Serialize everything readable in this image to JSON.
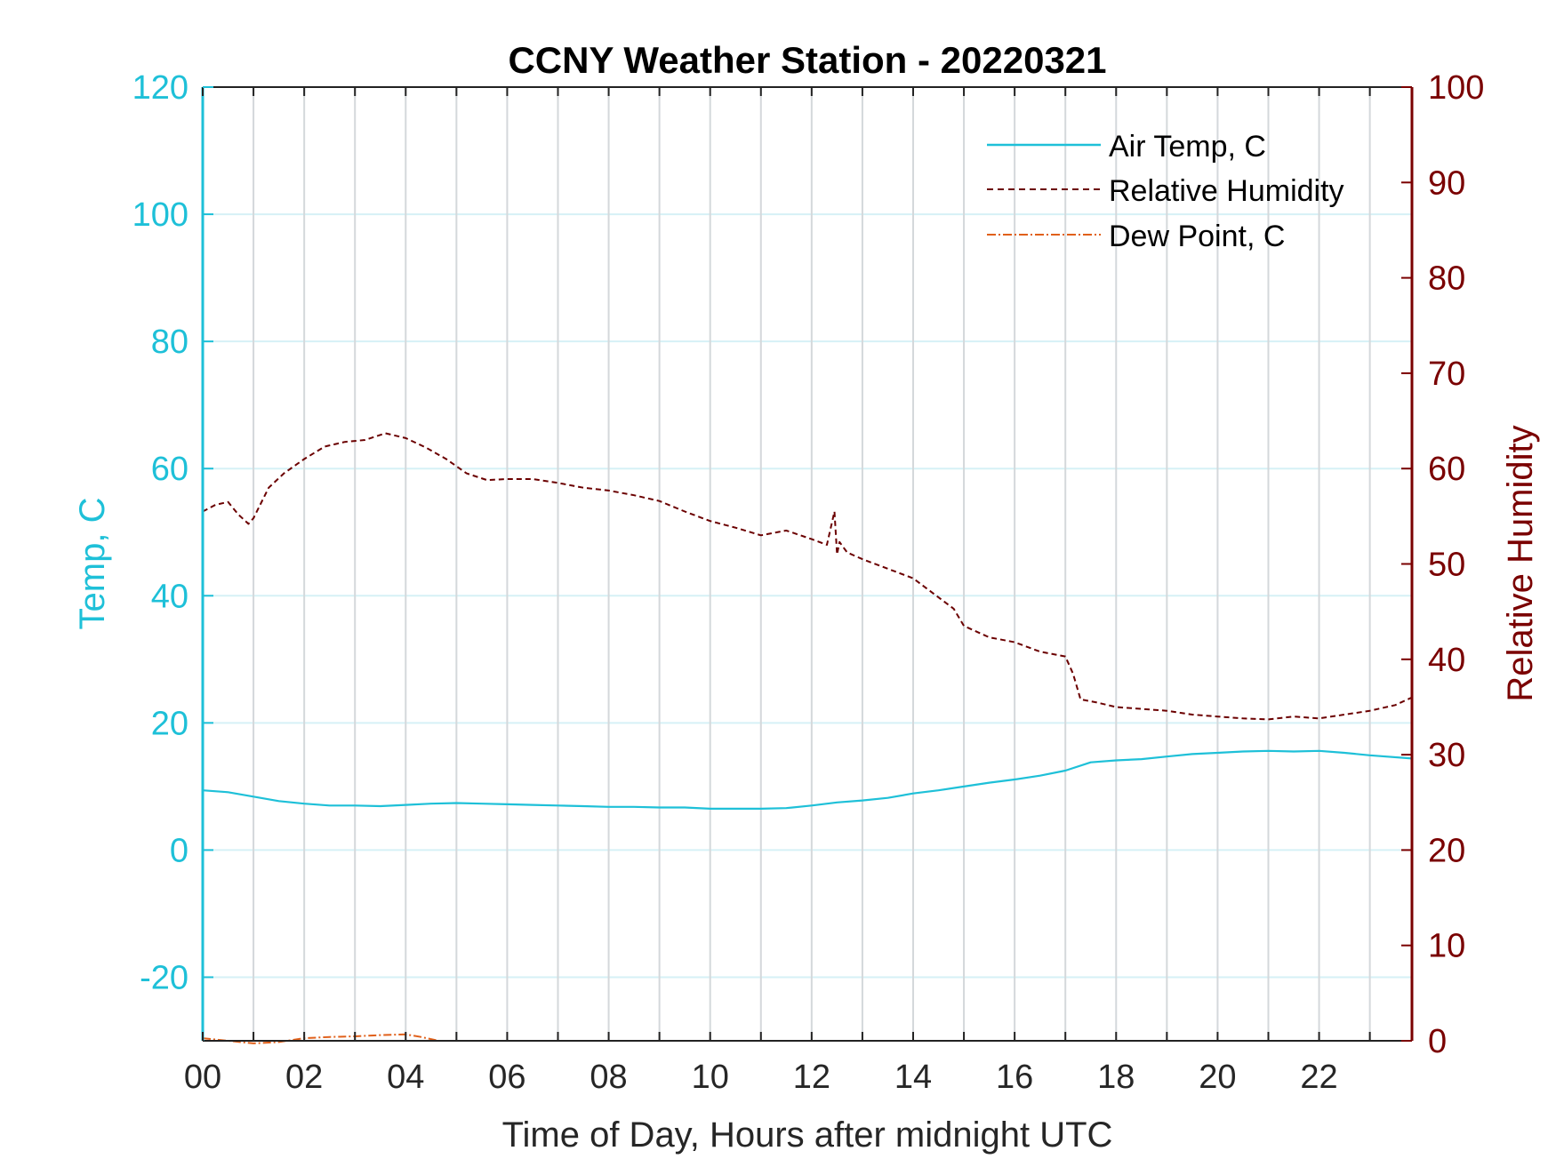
{
  "chart_data": {
    "type": "line",
    "title": "CCNY Weather Station - 20220321",
    "xlabel": "Time of Day, Hours after midnight UTC",
    "ylabel_left": "Temp, C",
    "ylabel_right": "Relative Humidity",
    "xlim": [
      0,
      23.83
    ],
    "ylim_left": [
      -30,
      120
    ],
    "ylim_right": [
      0,
      100
    ],
    "x_ticks": [
      0,
      2,
      4,
      6,
      8,
      10,
      12,
      14,
      16,
      18,
      20,
      22
    ],
    "x_tick_labels": [
      "00",
      "02",
      "04",
      "06",
      "08",
      "10",
      "12",
      "14",
      "16",
      "18",
      "20",
      "22"
    ],
    "y_left_ticks": [
      -20,
      0,
      20,
      40,
      60,
      80,
      100,
      120
    ],
    "y_right_ticks": [
      0,
      10,
      20,
      30,
      40,
      50,
      60,
      70,
      80,
      90,
      100
    ],
    "grid": true,
    "legend_position": "top-right",
    "colors": {
      "left_axis": "#1ec0d8",
      "right_axis": "#7a0000",
      "air_temp": "#1ec0d8",
      "humidity": "#6b0000",
      "dew_point": "#e0601a"
    },
    "series": [
      {
        "name": "Air Temp, C",
        "axis": "left",
        "style": "solid",
        "x": [
          0,
          0.5,
          1,
          1.5,
          2,
          2.5,
          3,
          3.5,
          4,
          4.5,
          5,
          5.5,
          6,
          6.5,
          7,
          7.5,
          8,
          8.5,
          9,
          9.5,
          10,
          10.5,
          11,
          11.5,
          12,
          12.5,
          13,
          13.5,
          14,
          14.5,
          15,
          15.5,
          16,
          16.5,
          17,
          17.5,
          18,
          18.5,
          19,
          19.5,
          20,
          20.5,
          21,
          21.5,
          22,
          22.5,
          23,
          23.83
        ],
        "y": [
          9.4,
          9.1,
          8.4,
          7.7,
          7.3,
          7.0,
          7.0,
          6.9,
          7.1,
          7.3,
          7.4,
          7.3,
          7.2,
          7.1,
          7.0,
          6.9,
          6.8,
          6.8,
          6.7,
          6.7,
          6.5,
          6.5,
          6.5,
          6.6,
          7.0,
          7.5,
          7.8,
          8.2,
          8.9,
          9.4,
          10.0,
          10.6,
          11.1,
          11.7,
          12.5,
          13.8,
          14.1,
          14.3,
          14.7,
          15.1,
          15.3,
          15.5,
          15.6,
          15.5,
          15.6,
          15.3,
          14.9,
          14.4
        ]
      },
      {
        "name": "Relative Humidity",
        "axis": "right",
        "style": "dashed",
        "x": [
          0,
          0.25,
          0.5,
          0.7,
          0.9,
          1.0,
          1.3,
          1.6,
          2.0,
          2.4,
          2.8,
          3.2,
          3.6,
          4.0,
          4.4,
          4.8,
          5.2,
          5.6,
          6.0,
          6.5,
          7.0,
          7.5,
          8.0,
          8.5,
          9.0,
          9.5,
          10.0,
          10.5,
          11.0,
          11.5,
          12.0,
          12.3,
          12.45,
          12.5,
          12.55,
          12.7,
          13.0,
          13.5,
          14.0,
          14.5,
          14.8,
          15.0,
          15.5,
          16.0,
          16.5,
          17.0,
          17.15,
          17.3,
          17.6,
          18.0,
          18.5,
          19.0,
          19.5,
          20.0,
          20.5,
          21.0,
          21.5,
          22.0,
          22.5,
          23.0,
          23.5,
          23.83
        ],
        "y": [
          55.5,
          56.2,
          56.5,
          55.2,
          54.2,
          54.8,
          58.0,
          59.5,
          61.0,
          62.3,
          62.8,
          63.0,
          63.7,
          63.2,
          62.2,
          61.0,
          59.5,
          58.8,
          58.9,
          58.9,
          58.5,
          58.0,
          57.7,
          57.2,
          56.6,
          55.5,
          54.5,
          53.8,
          53.0,
          53.5,
          52.6,
          52.0,
          55.5,
          51.0,
          52.3,
          51.2,
          50.5,
          49.5,
          48.5,
          46.5,
          45.3,
          43.5,
          42.3,
          41.8,
          40.8,
          40.3,
          38.5,
          35.8,
          35.5,
          35.0,
          34.8,
          34.6,
          34.2,
          34.0,
          33.8,
          33.7,
          34.0,
          33.8,
          34.2,
          34.6,
          35.2,
          36.0
        ]
      },
      {
        "name": "Dew Point, C",
        "axis": "left",
        "style": "dashdot",
        "x": [
          0,
          0.5,
          1,
          1.5,
          2,
          2.5,
          3,
          3.5,
          4,
          4.3,
          4.6
        ],
        "y": [
          -29.6,
          -30.0,
          -30.4,
          -30.2,
          -29.6,
          -29.4,
          -29.3,
          -29.1,
          -29.0,
          -29.4,
          -29.9
        ]
      }
    ]
  }
}
